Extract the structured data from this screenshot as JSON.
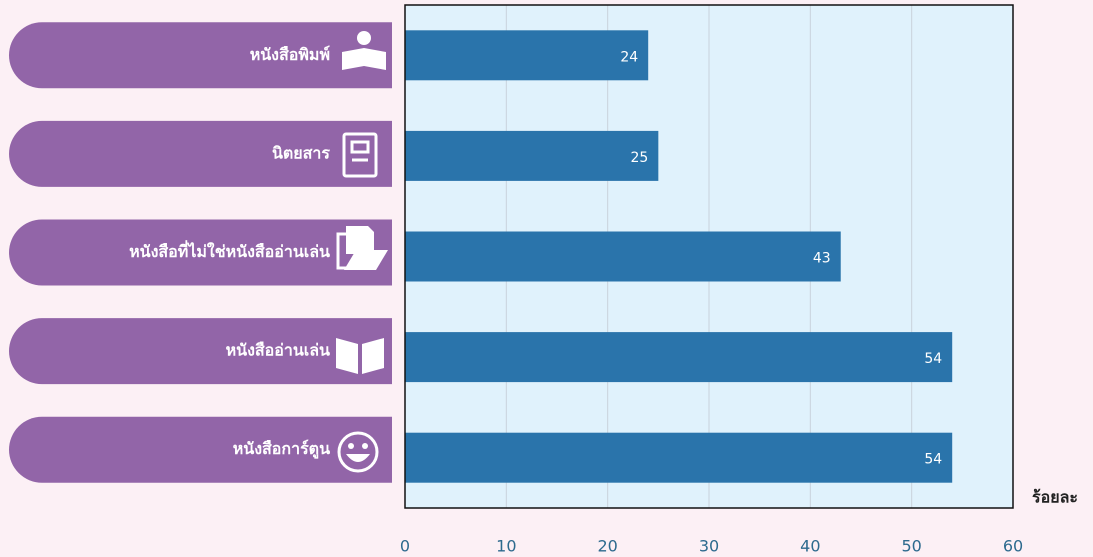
{
  "chart_data": {
    "type": "bar",
    "orientation": "horizontal",
    "categories": [
      "หนังสือพิมพ์",
      "นิตยสาร",
      "หนังสือที่ไม่ใช่หนังสืออ่านเล่น",
      "หนังสืออ่านเล่น",
      "หนังสือการ์ตูน"
    ],
    "values": [
      24,
      25,
      43,
      54,
      54
    ],
    "color": "#2a74ab",
    "x_label": "ร้อยละ",
    "xlim": [
      0,
      60
    ],
    "xticks": [
      0,
      10,
      20,
      30,
      40,
      50,
      60
    ],
    "grid": true
  }
}
